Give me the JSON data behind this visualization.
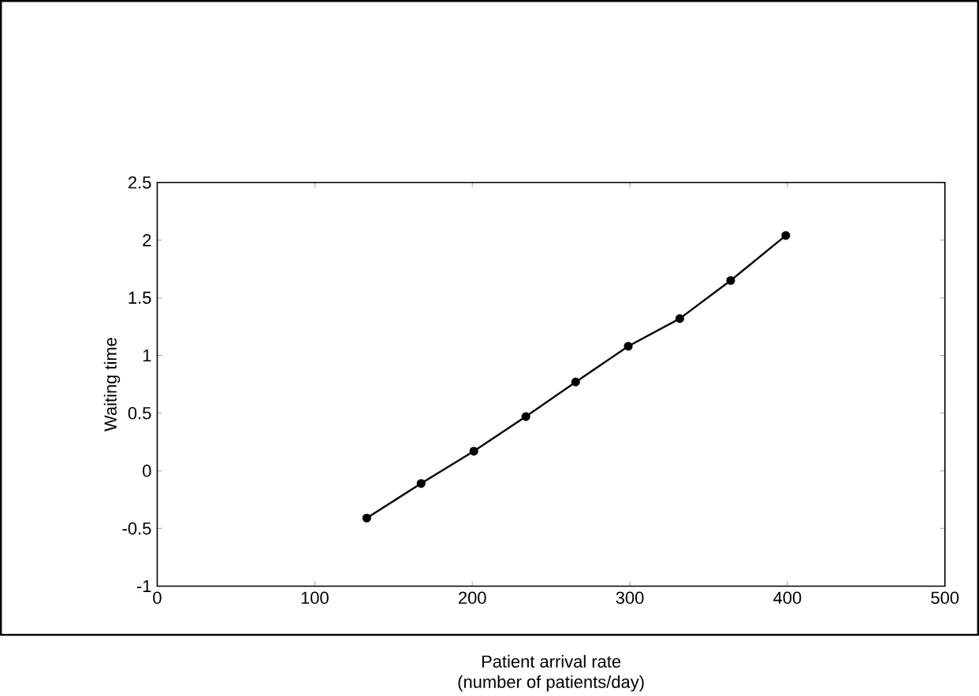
{
  "chart_data": {
    "type": "line",
    "xlabel": "Patient arrival rate\n(number of patients/day)",
    "ylabel": "Waiting time",
    "x": [
      133,
      167.5,
      201,
      234,
      265.6,
      299,
      331.7,
      364,
      399
    ],
    "values": [
      -0.41,
      -0.11,
      0.17,
      0.47,
      0.77,
      1.08,
      1.32,
      1.65,
      2.04
    ],
    "color": "#000000",
    "marker": "circle",
    "line_style": "solid",
    "xlim": [
      0,
      500
    ],
    "xticks": [
      0,
      100,
      200,
      300,
      400,
      500
    ],
    "ylim": [
      -1,
      2.5
    ],
    "yticks": [
      -1,
      -0.5,
      0,
      0.5,
      1,
      1.5,
      2,
      2.5
    ]
  }
}
